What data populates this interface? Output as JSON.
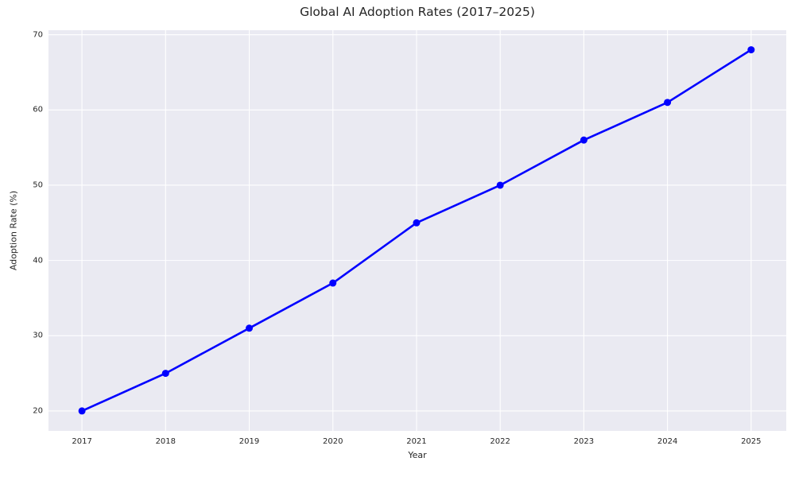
{
  "chart_data": {
    "type": "line",
    "title": "Global AI Adoption Rates (2017–2025)",
    "xlabel": "Year",
    "ylabel": "Adoption Rate (%)",
    "x": [
      2017,
      2018,
      2019,
      2020,
      2021,
      2022,
      2023,
      2024,
      2025
    ],
    "values": [
      20,
      25,
      31,
      37,
      45,
      50,
      56,
      61,
      68
    ],
    "series_name": "Adoption Rate",
    "xticks": [
      2017,
      2018,
      2019,
      2020,
      2021,
      2022,
      2023,
      2024,
      2025
    ],
    "yticks": [
      20,
      30,
      40,
      50,
      60,
      70
    ],
    "xlim": [
      2016.6,
      2025.42
    ],
    "ylim": [
      17.35,
      70.6
    ],
    "grid": true,
    "legend": false,
    "style": {
      "line_color": "#0000ff",
      "marker": "circle",
      "marker_color": "#0000ff",
      "plot_background": "#eaeaf2",
      "grid_color": "#ffffff",
      "text_color": "#262626",
      "figure_background": "#ffffff"
    }
  }
}
